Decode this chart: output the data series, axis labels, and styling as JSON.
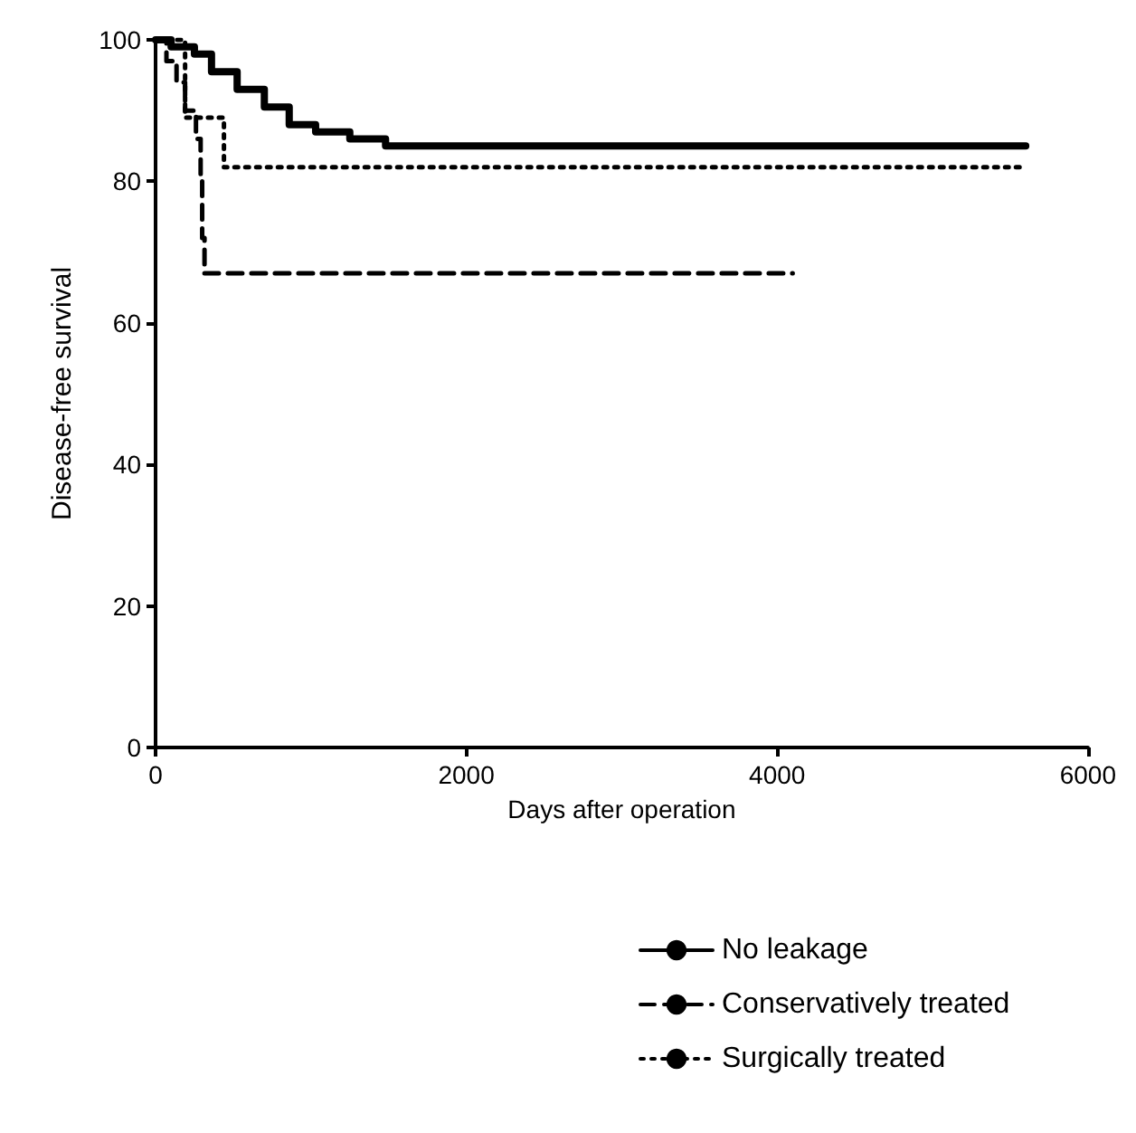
{
  "chart_data": {
    "type": "step",
    "xlabel": "Days after operation",
    "ylabel": "Disease-free survival",
    "xlim": [
      0,
      6000
    ],
    "xticks": [
      0,
      2000,
      4000,
      6000
    ],
    "ylim": [
      0,
      100
    ],
    "yticks": [
      0,
      20,
      40,
      60,
      80,
      100
    ],
    "grid": false,
    "legend": "bottom right",
    "marker": "none",
    "series": [
      {
        "name": "No leakage",
        "color": "#000000",
        "line_style": "solid",
        "x": [
          0,
          100,
          250,
          360,
          525,
          700,
          860,
          1030,
          1250,
          1480,
          5600
        ],
        "values": [
          100,
          99,
          98,
          95.5,
          93,
          90.5,
          88,
          87,
          86,
          85,
          85
        ]
      },
      {
        "name": "Conservatively treated",
        "color": "#000000",
        "line_style": "dashed",
        "x": [
          0,
          70,
          135,
          190,
          260,
          290,
          300,
          315,
          4100
        ],
        "values": [
          100,
          97,
          94,
          90,
          86,
          80,
          72,
          67,
          67
        ]
      },
      {
        "name": "Surgically treated",
        "color": "#000000",
        "line_style": "dotted",
        "x": [
          0,
          190,
          440,
          5600
        ],
        "values": [
          100,
          89,
          82,
          82
        ]
      }
    ]
  }
}
